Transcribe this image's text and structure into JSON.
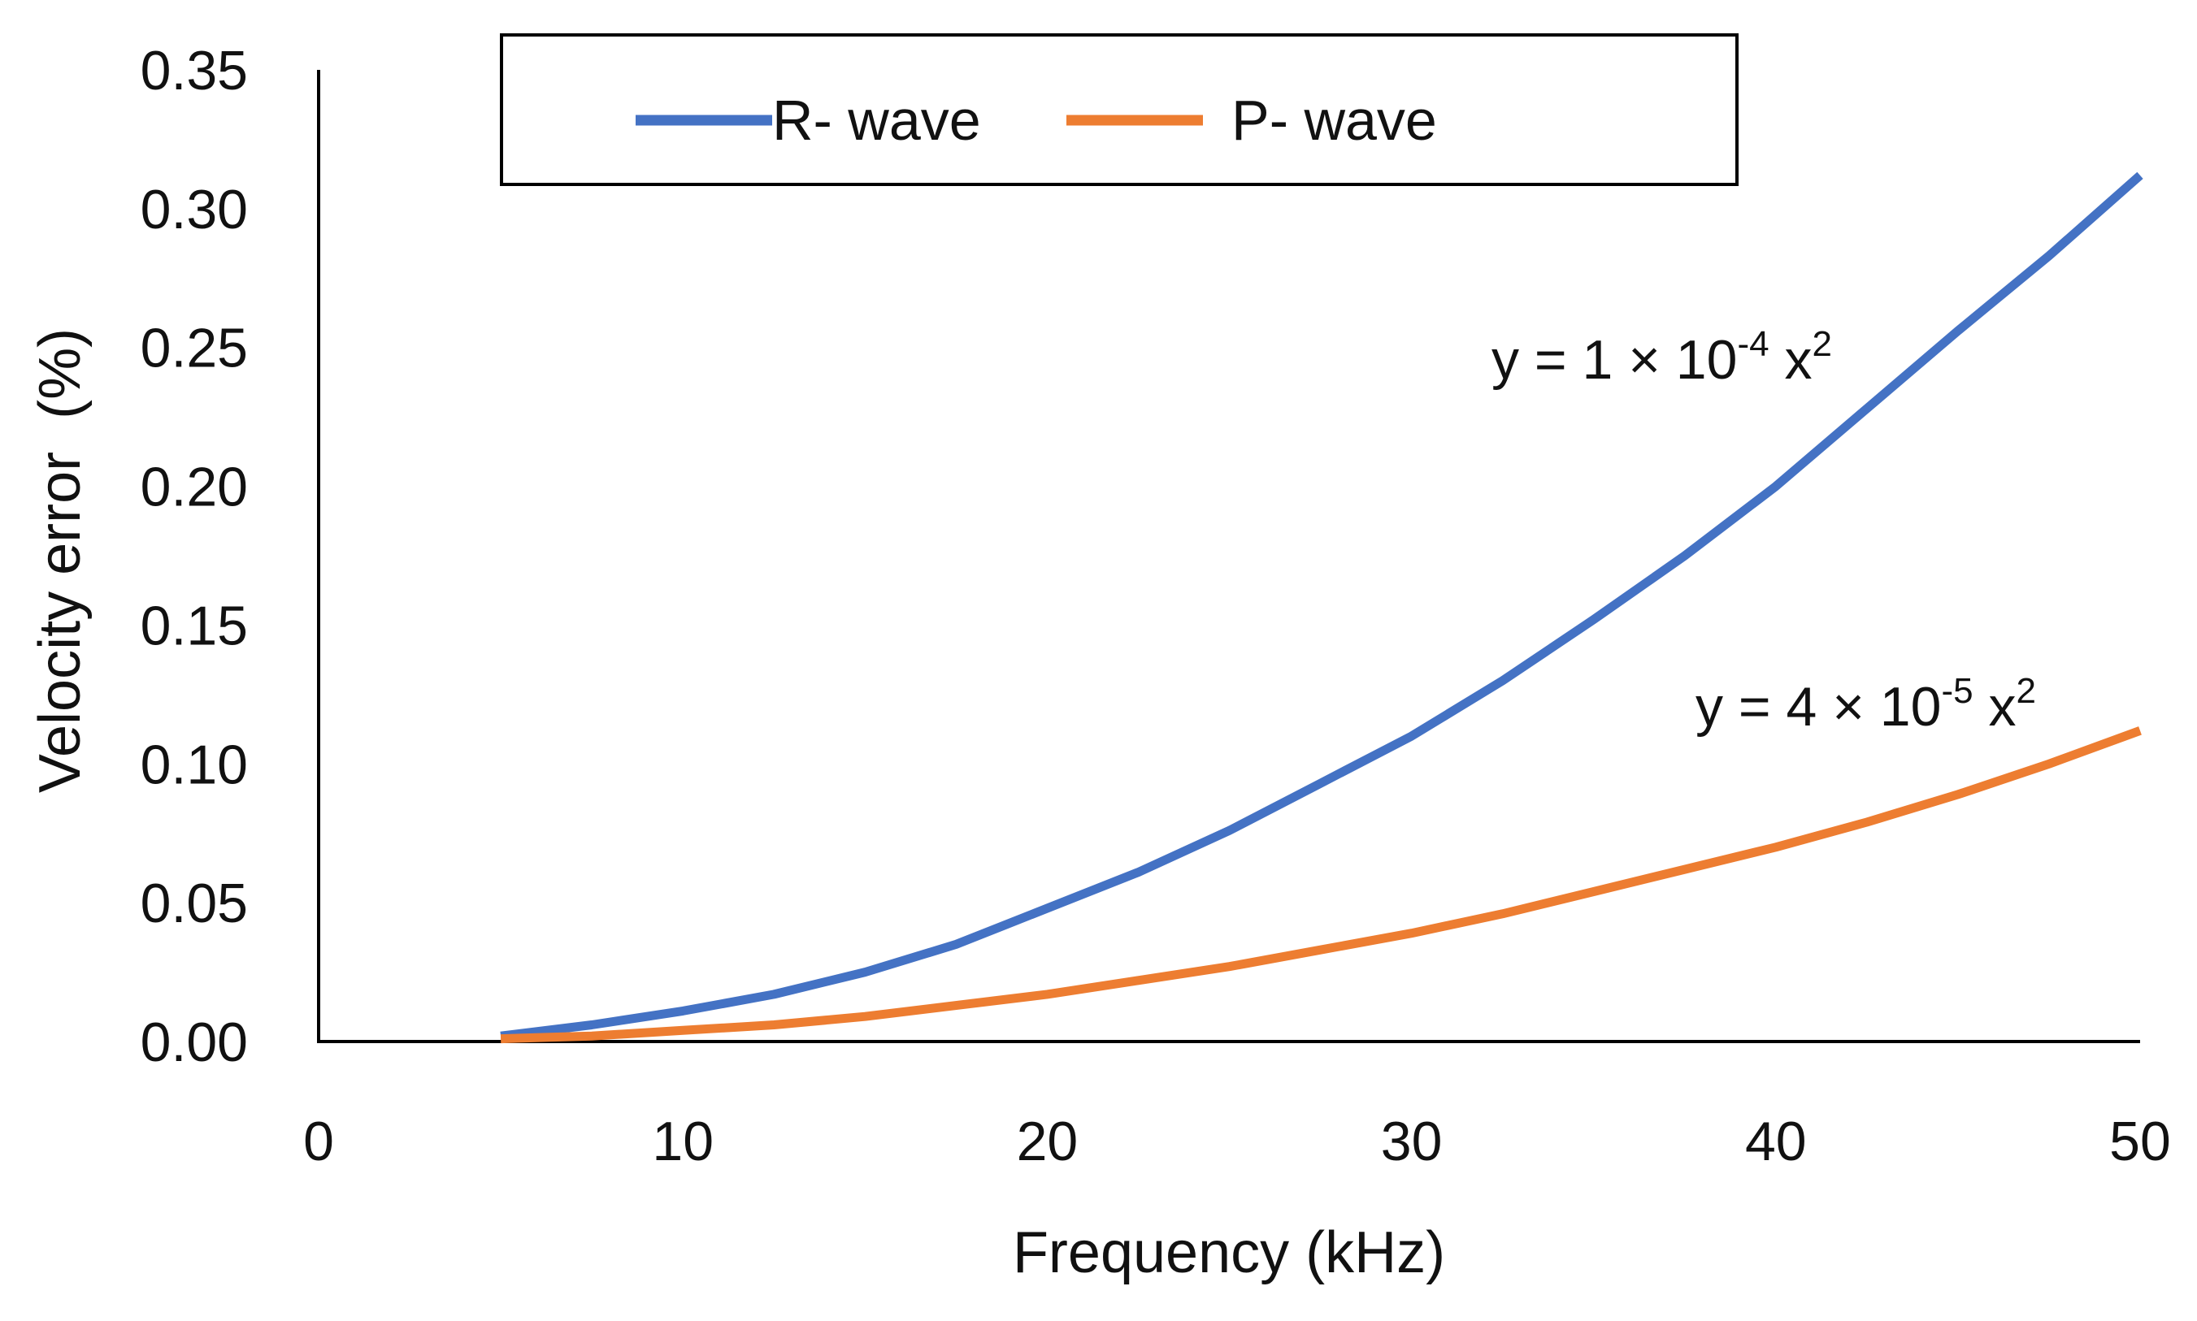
{
  "chart_data": {
    "type": "line",
    "xlabel": "Frequency (kHz)",
    "ylabel": "Velocity error  (%)",
    "xlim": [
      0,
      50
    ],
    "ylim": [
      0,
      0.35
    ],
    "x_ticks": [
      0,
      10,
      20,
      30,
      40,
      50
    ],
    "y_ticks": [
      0,
      0.05,
      0.1,
      0.15,
      0.2,
      0.25,
      0.3,
      0.35
    ],
    "x_tick_labels": [
      "0",
      "10",
      "20",
      "30",
      "40",
      "50"
    ],
    "y_tick_labels": [
      "0.00",
      "0.05",
      "0.10",
      "0.15",
      "0.20",
      "0.25",
      "0.30",
      "0.35"
    ],
    "grid": false,
    "legend_position": "top-center",
    "series": [
      {
        "name": "R- wave",
        "color": "#4472C4",
        "x_start": 5,
        "x_end": 50,
        "x": [
          5,
          7.5,
          10,
          12.5,
          15,
          17.5,
          20,
          22.5,
          25,
          27.5,
          30,
          32.5,
          35,
          37.5,
          40,
          42.5,
          45,
          47.5,
          50
        ],
        "values": [
          0.002,
          0.006,
          0.011,
          0.017,
          0.025,
          0.035,
          0.048,
          0.061,
          0.076,
          0.093,
          0.11,
          0.13,
          0.152,
          0.175,
          0.2,
          0.228,
          0.256,
          0.283,
          0.312
        ],
        "equation": {
          "prefix": "y = 1 × 10",
          "exponent": "-4",
          "variable": " x",
          "power": "2"
        }
      },
      {
        "name": "P- wave",
        "color": "#ED7D31",
        "x_start": 5,
        "x_end": 50,
        "x": [
          5,
          7.5,
          10,
          12.5,
          15,
          17.5,
          20,
          22.5,
          25,
          27.5,
          30,
          32.5,
          35,
          37.5,
          40,
          42.5,
          45,
          47.5,
          50
        ],
        "values": [
          0.001,
          0.002,
          0.004,
          0.006,
          0.009,
          0.013,
          0.017,
          0.022,
          0.027,
          0.033,
          0.039,
          0.046,
          0.054,
          0.062,
          0.07,
          0.079,
          0.089,
          0.1,
          0.112
        ],
        "equation": {
          "prefix": "y = 4 × 10",
          "exponent": "-5",
          "variable": " x",
          "power": "2"
        }
      }
    ]
  }
}
